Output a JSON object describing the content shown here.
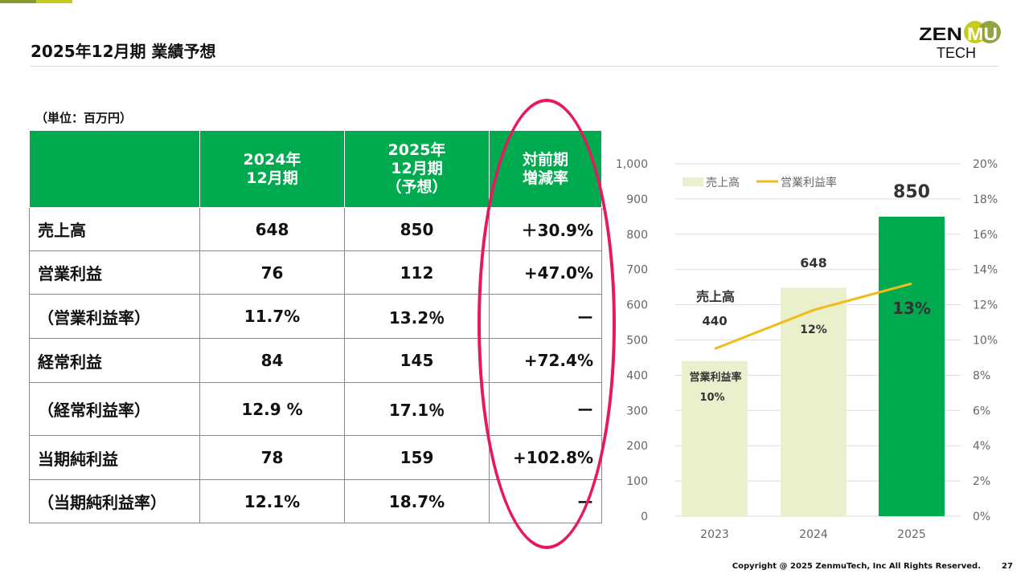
{
  "header": {
    "title": "2025年12月期 業績予想",
    "logo_text": "ZENMU TECH",
    "unit": "（単位：百万円）"
  },
  "table": {
    "headers": [
      "",
      "2024年\n12月期",
      "2025年\n12月期\n（予想）",
      "対前期\n増減率"
    ],
    "rows": [
      {
        "label": "売上高",
        "y2024": "648",
        "y2025": "850",
        "change": "＋30.9%"
      },
      {
        "label": "営業利益",
        "y2024": "76",
        "y2025": "112",
        "change": "+47.0%"
      },
      {
        "label": "（営業利益率）",
        "y2024": "11.7%",
        "y2025": "13.2％",
        "change": "ー"
      },
      {
        "label": "経常利益",
        "y2024": "84",
        "y2025": "145",
        "change": "+72.4%"
      },
      {
        "label": "（経常利益率）",
        "y2024": "12.9 %",
        "y2025": "17.1％",
        "change": "ー"
      },
      {
        "label": "当期純利益",
        "y2024": "78",
        "y2025": "159",
        "change": "+102.8%"
      },
      {
        "label": "（当期純利益率）",
        "y2024": "12.1%",
        "y2025": "18.7%",
        "change": "ー"
      }
    ]
  },
  "chart_data": {
    "type": "bar",
    "categories": [
      "2023",
      "2024",
      "2025"
    ],
    "series": [
      {
        "name": "売上高",
        "type": "bar",
        "values": [
          440,
          648,
          850
        ],
        "colors": [
          "#eaefcc",
          "#eaefcc",
          "#00aa4f"
        ]
      },
      {
        "name": "営業利益率",
        "type": "line",
        "axis": "right",
        "values": [
          9.5,
          11.7,
          13.2
        ],
        "color": "#f0bc1a"
      }
    ],
    "left_axis": {
      "range": [
        0,
        1000
      ],
      "ticks": [
        "0",
        "100",
        "200",
        "300",
        "400",
        "500",
        "600",
        "700",
        "800",
        "900",
        "1,000"
      ]
    },
    "right_axis": {
      "range": [
        0,
        20
      ],
      "ticks": [
        "0%",
        "2%",
        "4%",
        "6%",
        "8%",
        "10%",
        "12%",
        "14%",
        "16%",
        "18%",
        "20%"
      ]
    },
    "bar_labels": [
      "440",
      "648",
      "850"
    ],
    "rate_labels": [
      "10%",
      "12%",
      "13%"
    ],
    "annotations": [
      "売上高",
      "営業利益率"
    ],
    "legend": "top-left",
    "grid": true
  },
  "footer": {
    "copyright": "Copyright @ 2025 ZenmuTech, Inc All Rights Reserved.",
    "page": "27"
  }
}
